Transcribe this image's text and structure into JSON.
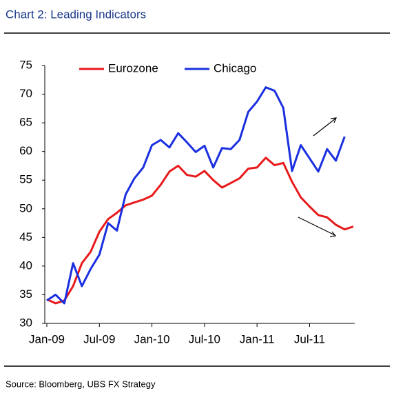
{
  "chart_data": {
    "type": "line",
    "title": "Chart 2: Leading Indicators",
    "source": "Source: Bloomberg, UBS FX Strategy",
    "categories": [
      "Jan-09",
      null,
      null,
      null,
      null,
      null,
      "Jul-09",
      null,
      null,
      null,
      null,
      null,
      "Jan-10",
      null,
      null,
      null,
      null,
      null,
      "Jul-10",
      null,
      null,
      null,
      null,
      null,
      "Jan-11",
      null,
      null,
      null,
      null,
      null,
      "Jul-11",
      null,
      null,
      null,
      null,
      null
    ],
    "series": [
      {
        "name": "Eurozone",
        "color": "#e8191b",
        "values": [
          34.2,
          33.5,
          34,
          36.5,
          40.5,
          42.5,
          46,
          48.2,
          49.3,
          50.6,
          51.1,
          51.6,
          52.3,
          54.2,
          56.5,
          57.5,
          55.9,
          55.6,
          56.6,
          55,
          53.7,
          54.5,
          55.3,
          57,
          57.2,
          58.9,
          57.6,
          58,
          54.7,
          52,
          50.4,
          48.9,
          48.5,
          47.2,
          46.4,
          46.9
        ]
      },
      {
        "name": "Chicago",
        "color": "#1a2fe0",
        "values": [
          34,
          35,
          33.5,
          40.5,
          36.5,
          39.5,
          42,
          47.5,
          46.2,
          52.5,
          55.3,
          57.2,
          61.1,
          62,
          60.7,
          63.2,
          61.6,
          59.9,
          61,
          57.2,
          60.6,
          60.4,
          62,
          66.9,
          68.7,
          71.2,
          70.6,
          67.6,
          56.6,
          61.1,
          58.8,
          56.5,
          60.4,
          58.4,
          62.6,
          null
        ]
      }
    ],
    "ylim": [
      30,
      75
    ],
    "yticks": [
      30,
      35,
      40,
      45,
      50,
      55,
      60,
      65,
      70,
      75
    ],
    "grid": false,
    "legend": "top"
  }
}
